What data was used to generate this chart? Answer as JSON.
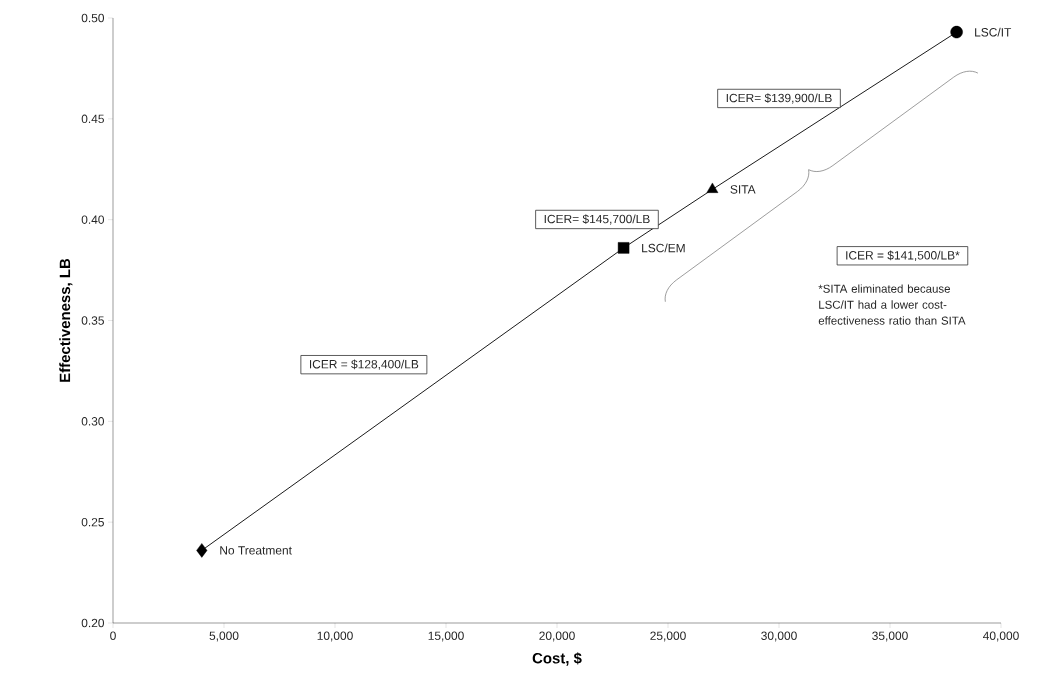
{
  "chart_data": {
    "type": "scatter",
    "xlabel": "Cost, $",
    "ylabel": "Effectiveness, LB",
    "xlim": [
      0,
      40000
    ],
    "ylim": [
      0.2,
      0.5
    ],
    "xticks": [
      0,
      {
        "value": 5000,
        "label": "5,000"
      },
      {
        "value": 10000,
        "label": "10,000"
      },
      {
        "value": 15000,
        "label": "15,000"
      },
      {
        "value": 20000,
        "label": "20,000"
      },
      {
        "value": 25000,
        "label": "25,000"
      },
      {
        "value": 30000,
        "label": "30,000"
      },
      {
        "value": 35000,
        "label": "35,000"
      },
      {
        "value": 40000,
        "label": "40,000"
      }
    ],
    "yticks": [
      {
        "value": 0.2,
        "label": "0.20"
      },
      0.25,
      {
        "value": 0.3,
        "label": "0.30"
      },
      0.35,
      {
        "value": 0.4,
        "label": "0.40"
      },
      0.45,
      {
        "value": 0.5,
        "label": "0.50"
      }
    ],
    "grid": false,
    "legend": false,
    "series": [
      {
        "type": "line",
        "color": "#000000",
        "marker": "none",
        "line_style": "solid",
        "x": [
          4000,
          23000,
          27000,
          38000
        ],
        "values": [
          0.236,
          0.386,
          0.415,
          0.493
        ]
      },
      {
        "type": "scatter",
        "name": "No Treatment",
        "color": "#000000",
        "marker": "diamond",
        "x": [
          4000
        ],
        "values": [
          0.236
        ]
      },
      {
        "type": "scatter",
        "name": "LSC/EM",
        "color": "#000000",
        "marker": "square",
        "x": [
          23000
        ],
        "values": [
          0.386
        ]
      },
      {
        "type": "scatter",
        "name": "SITA",
        "color": "#000000",
        "marker": "triangle",
        "x": [
          27000
        ],
        "values": [
          0.415
        ]
      },
      {
        "type": "scatter",
        "name": "LSC/IT",
        "color": "#000000",
        "marker": "circle",
        "x": [
          38000
        ],
        "values": [
          0.493
        ]
      }
    ],
    "annotations": [
      "ICER = $128,400/LB",
      "ICER= $145,700/LB",
      "ICER= $139,900/LB",
      "ICER = $141,500/LB*",
      "*SITA eliminated because LSC/IT had a lower cost-effectiveness ratio than SITA"
    ]
  }
}
